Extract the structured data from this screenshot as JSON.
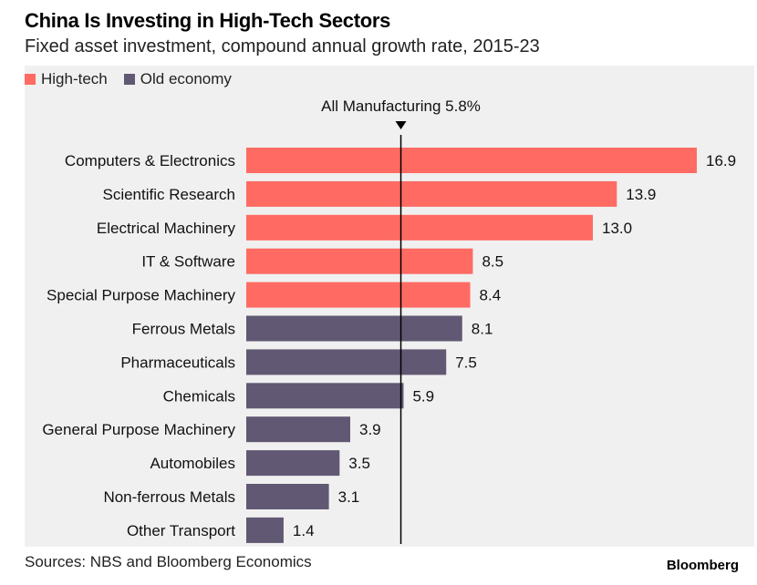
{
  "header": {
    "title": "China Is Investing in High-Tech Sectors",
    "subtitle": "Fixed asset investment, compound annual growth rate, 2015-23"
  },
  "footer": {
    "source": "Sources: NBS and Bloomberg Economics",
    "brand": "Bloomberg"
  },
  "colors": {
    "high_tech": "#ff6b63",
    "old_economy": "#615873",
    "reference_line": "#000000",
    "panel_background": "#f0f0f0"
  },
  "chart_data": {
    "type": "bar",
    "orientation": "horizontal",
    "title": "China Is Investing in High-Tech Sectors",
    "subtitle": "Fixed asset investment, compound annual growth rate, 2015-23",
    "legend": [
      {
        "name": "High-tech",
        "color": "#ff6b63"
      },
      {
        "name": "Old economy",
        "color": "#615873"
      }
    ],
    "legend_position": "top-left",
    "grid": false,
    "xlim": [
      0,
      16.9
    ],
    "reference_line": {
      "label": "All Manufacturing 5.8%",
      "value": 5.8
    },
    "categories": [
      "Computers & Electronics",
      "Scientific Research",
      "Electrical Machinery",
      "IT & Software",
      "Special Purpose Machinery",
      "Ferrous Metals",
      "Pharmaceuticals",
      "Chemicals",
      "General Purpose Machinery",
      "Automobiles",
      "Non-ferrous Metals",
      "Other Transport"
    ],
    "values": [
      16.9,
      13.9,
      13.0,
      8.5,
      8.4,
      8.1,
      7.5,
      5.9,
      3.9,
      3.5,
      3.1,
      1.4
    ],
    "value_labels": [
      "16.9",
      "13.9",
      "13.0",
      "8.5",
      "8.4",
      "8.1",
      "7.5",
      "5.9",
      "3.9",
      "3.5",
      "3.1",
      "1.4"
    ],
    "groups": [
      "High-tech",
      "High-tech",
      "High-tech",
      "High-tech",
      "High-tech",
      "Old economy",
      "Old economy",
      "Old economy",
      "Old economy",
      "Old economy",
      "Old economy",
      "Old economy"
    ]
  }
}
